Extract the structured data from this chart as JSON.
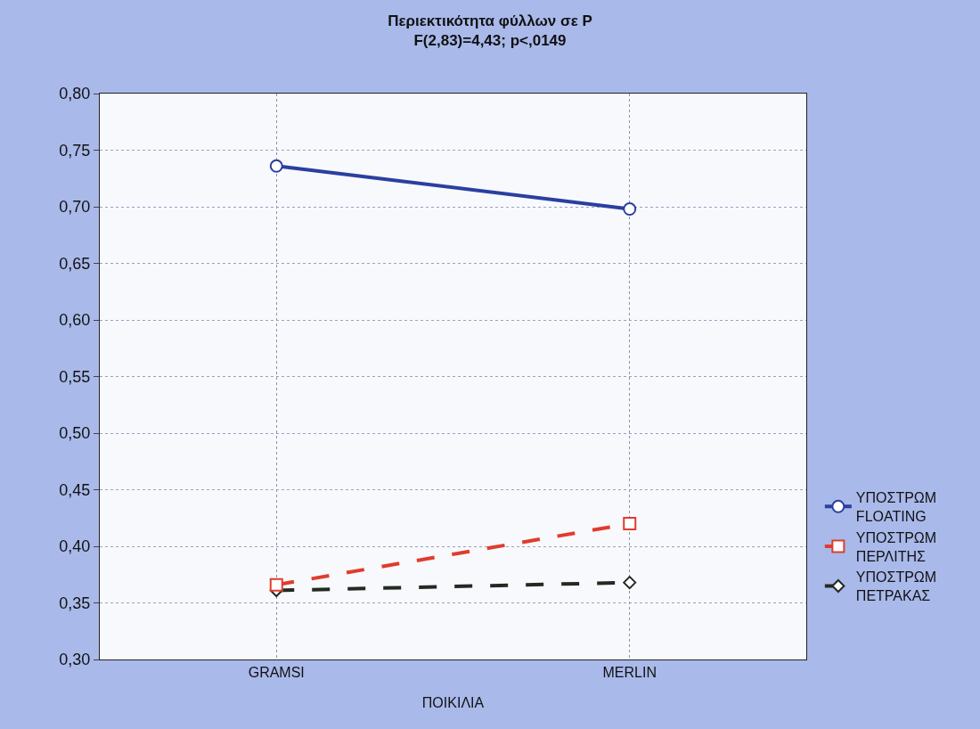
{
  "chart_data": {
    "type": "line",
    "title": "Περιεκτικότητα φύλλων σε P",
    "subtitle": "F(2,83)=4,43; p<,0149",
    "xlabel": "ΠΟΙΚΙΛΙΑ",
    "categories": [
      "GRAMSI",
      "MERLIN"
    ],
    "series": [
      {
        "name": "ΥΠΟΣΤΡΩΜ\nFLOATING",
        "color": "#2b3fa0",
        "values": [
          0.736,
          0.698
        ],
        "marker": "circle",
        "line_style": "solid"
      },
      {
        "name": "ΥΠΟΣΤΡΩΜ\nΠΕΡΛΙΤΗΣ",
        "color": "#e03c2c",
        "values": [
          0.366,
          0.42
        ],
        "marker": "square",
        "line_style": "dashed"
      },
      {
        "name": "ΥΠΟΣΤΡΩΜ\nΠΕΤΡΑΚΑΣ",
        "color": "#222a22",
        "values": [
          0.361,
          0.368
        ],
        "marker": "diamond",
        "line_style": "dashed"
      }
    ],
    "ylim": [
      0.3,
      0.8
    ],
    "yticks": [
      {
        "value": 0.3,
        "label": "0,30"
      },
      {
        "value": 0.35,
        "label": "0,35"
      },
      {
        "value": 0.4,
        "label": "0,40"
      },
      {
        "value": 0.45,
        "label": "0,45"
      },
      {
        "value": 0.5,
        "label": "0,50"
      },
      {
        "value": 0.55,
        "label": "0,55"
      },
      {
        "value": 0.6,
        "label": "0,60"
      },
      {
        "value": 0.65,
        "label": "0,65"
      },
      {
        "value": 0.7,
        "label": "0,70"
      },
      {
        "value": 0.75,
        "label": "0,75"
      },
      {
        "value": 0.8,
        "label": "0,80"
      }
    ],
    "grid": true,
    "legend": "right"
  }
}
